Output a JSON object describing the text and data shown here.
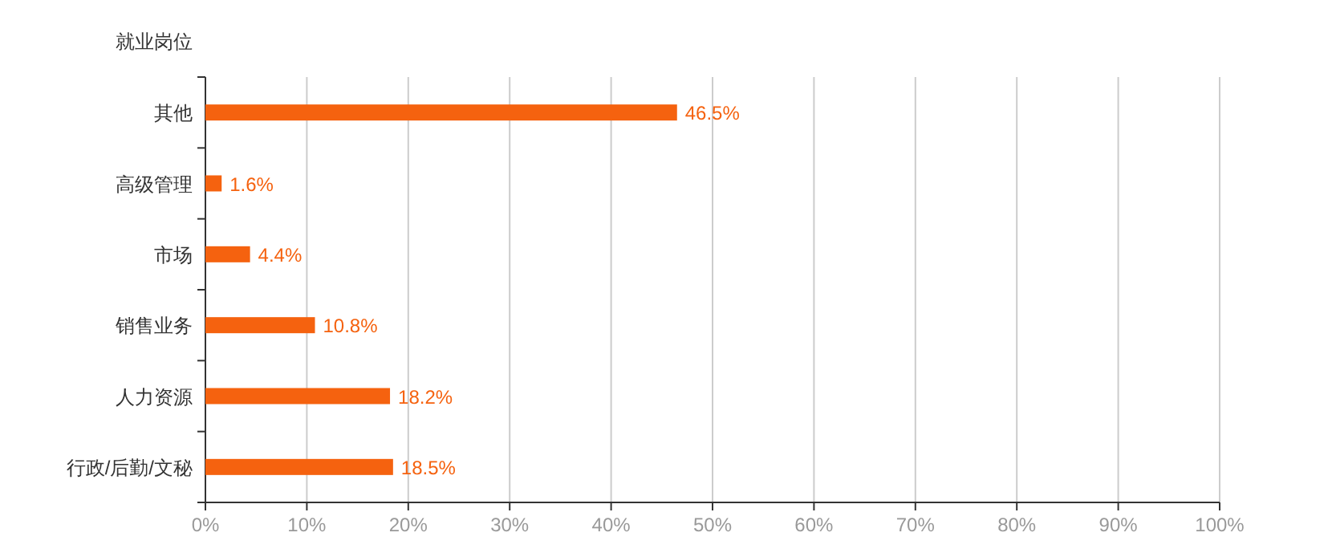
{
  "chart_data": {
    "type": "bar",
    "orientation": "horizontal",
    "ylabel": "就业岗位",
    "categories": [
      "其他",
      "高级管理",
      "市场",
      "销售业务",
      "人力资源",
      "行政/后勤/文秘"
    ],
    "values": [
      46.5,
      1.6,
      4.4,
      10.8,
      18.2,
      18.5
    ],
    "value_labels": [
      "46.5%",
      "1.6%",
      "4.4%",
      "10.8%",
      "18.2%",
      "18.5%"
    ],
    "color": "#f5620f",
    "xlim": [
      0,
      100
    ],
    "xticks": [
      {
        "value": 0,
        "label": "0%"
      },
      {
        "value": 10,
        "label": "10%"
      },
      {
        "value": 20,
        "label": "20%"
      },
      {
        "value": 30,
        "label": "30%"
      },
      {
        "value": 40,
        "label": "40%"
      },
      {
        "value": 50,
        "label": "50%"
      },
      {
        "value": 60,
        "label": "60%"
      },
      {
        "value": 70,
        "label": "70%"
      },
      {
        "value": 80,
        "label": "80%"
      },
      {
        "value": 90,
        "label": "90%"
      },
      {
        "value": 100,
        "label": "100%"
      }
    ],
    "grid": "x"
  }
}
